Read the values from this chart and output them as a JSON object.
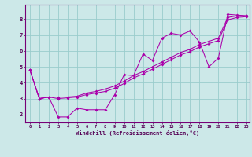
{
  "xlabel": "Windchill (Refroidissement éolien,°C)",
  "xlim": [
    -0.5,
    23.3
  ],
  "ylim": [
    1.5,
    8.9
  ],
  "xticks": [
    0,
    1,
    2,
    3,
    4,
    5,
    6,
    7,
    8,
    9,
    10,
    11,
    12,
    13,
    14,
    15,
    16,
    17,
    18,
    19,
    20,
    21,
    22,
    23
  ],
  "yticks": [
    2,
    3,
    4,
    5,
    6,
    7,
    8
  ],
  "background_color": "#cce8e8",
  "line_color": "#aa00aa",
  "grid_color": "#99cccc",
  "series1": [
    [
      0,
      4.8
    ],
    [
      1,
      3.0
    ],
    [
      2,
      3.1
    ],
    [
      3,
      1.85
    ],
    [
      4,
      1.85
    ],
    [
      5,
      2.4
    ],
    [
      6,
      2.3
    ],
    [
      7,
      2.3
    ],
    [
      8,
      2.3
    ],
    [
      9,
      3.25
    ],
    [
      10,
      4.5
    ],
    [
      11,
      4.45
    ],
    [
      12,
      5.8
    ],
    [
      13,
      5.4
    ],
    [
      14,
      6.8
    ],
    [
      15,
      7.1
    ],
    [
      16,
      7.0
    ],
    [
      17,
      7.25
    ],
    [
      18,
      6.55
    ],
    [
      19,
      5.0
    ],
    [
      20,
      5.55
    ],
    [
      21,
      8.3
    ],
    [
      22,
      8.25
    ],
    [
      23,
      8.2
    ]
  ],
  "series2": [
    [
      0,
      4.8
    ],
    [
      1,
      3.0
    ],
    [
      2,
      3.1
    ],
    [
      3,
      3.1
    ],
    [
      4,
      3.1
    ],
    [
      5,
      3.15
    ],
    [
      6,
      3.35
    ],
    [
      7,
      3.45
    ],
    [
      8,
      3.6
    ],
    [
      9,
      3.8
    ],
    [
      10,
      4.1
    ],
    [
      11,
      4.45
    ],
    [
      12,
      4.7
    ],
    [
      13,
      5.0
    ],
    [
      14,
      5.3
    ],
    [
      15,
      5.6
    ],
    [
      16,
      5.9
    ],
    [
      17,
      6.1
    ],
    [
      18,
      6.4
    ],
    [
      19,
      6.6
    ],
    [
      20,
      6.8
    ],
    [
      21,
      8.1
    ],
    [
      22,
      8.2
    ],
    [
      23,
      8.2
    ]
  ],
  "series3": [
    [
      0,
      4.8
    ],
    [
      1,
      3.0
    ],
    [
      2,
      3.1
    ],
    [
      3,
      3.0
    ],
    [
      4,
      3.05
    ],
    [
      5,
      3.1
    ],
    [
      6,
      3.25
    ],
    [
      7,
      3.35
    ],
    [
      8,
      3.45
    ],
    [
      9,
      3.65
    ],
    [
      10,
      3.95
    ],
    [
      11,
      4.3
    ],
    [
      12,
      4.55
    ],
    [
      13,
      4.85
    ],
    [
      14,
      5.15
    ],
    [
      15,
      5.45
    ],
    [
      16,
      5.75
    ],
    [
      17,
      5.95
    ],
    [
      18,
      6.25
    ],
    [
      19,
      6.45
    ],
    [
      20,
      6.65
    ],
    [
      21,
      7.95
    ],
    [
      22,
      8.1
    ],
    [
      23,
      8.15
    ]
  ]
}
